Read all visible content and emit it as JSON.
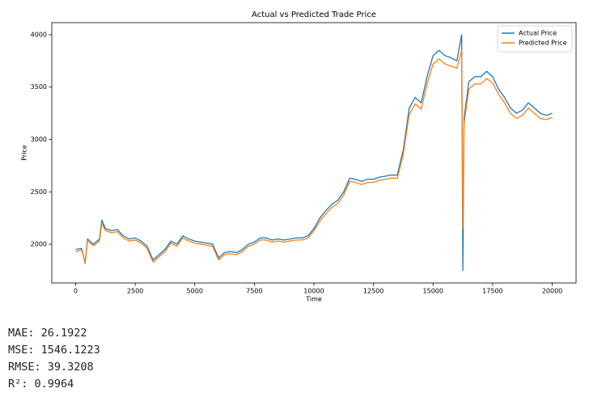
{
  "chart_data": {
    "type": "line",
    "title": "Actual vs Predicted Trade Price",
    "xlabel": "Time",
    "ylabel": "Price",
    "x": [
      0,
      250,
      400,
      500,
      750,
      1000,
      1100,
      1250,
      1500,
      1750,
      2000,
      2250,
      2500,
      2750,
      3000,
      3250,
      3500,
      3750,
      4000,
      4250,
      4500,
      4750,
      5000,
      5250,
      5500,
      5750,
      6000,
      6250,
      6500,
      6750,
      7000,
      7250,
      7500,
      7750,
      8000,
      8250,
      8500,
      8750,
      9000,
      9250,
      9500,
      9750,
      10000,
      10250,
      10500,
      10750,
      11000,
      11250,
      11500,
      11750,
      12000,
      12250,
      12500,
      12750,
      13000,
      13250,
      13500,
      13750,
      14000,
      14250,
      14500,
      14750,
      15000,
      15250,
      15500,
      15750,
      16000,
      16200,
      16250,
      16300,
      16500,
      16750,
      17000,
      17250,
      17500,
      17750,
      18000,
      18250,
      18500,
      18750,
      19000,
      19250,
      19500,
      19750,
      20000
    ],
    "series": [
      {
        "name": "Actual Price",
        "color": "#1f77b4",
        "values": [
          1950,
          1960,
          1820,
          2050,
          2000,
          2050,
          2230,
          2150,
          2130,
          2140,
          2080,
          2050,
          2060,
          2030,
          1980,
          1850,
          1900,
          1950,
          2030,
          2000,
          2080,
          2050,
          2030,
          2020,
          2010,
          2000,
          1870,
          1920,
          1930,
          1920,
          1950,
          2000,
          2020,
          2060,
          2060,
          2040,
          2050,
          2040,
          2050,
          2060,
          2060,
          2080,
          2150,
          2250,
          2320,
          2380,
          2420,
          2500,
          2630,
          2620,
          2600,
          2620,
          2620,
          2640,
          2650,
          2660,
          2660,
          2900,
          3300,
          3400,
          3350,
          3600,
          3800,
          3850,
          3800,
          3780,
          3750,
          4000,
          1750,
          3200,
          3550,
          3600,
          3600,
          3650,
          3600,
          3480,
          3400,
          3300,
          3250,
          3280,
          3350,
          3300,
          3250,
          3230,
          3250
        ]
      },
      {
        "name": "Predicted Price",
        "color": "#ff7f0e",
        "values": [
          1930,
          1945,
          1830,
          2030,
          1985,
          2030,
          2200,
          2130,
          2110,
          2120,
          2060,
          2030,
          2040,
          2010,
          1960,
          1830,
          1880,
          1930,
          2010,
          1980,
          2060,
          2030,
          2010,
          2000,
          1990,
          1980,
          1850,
          1900,
          1910,
          1900,
          1930,
          1980,
          2000,
          2040,
          2040,
          2020,
          2030,
          2020,
          2030,
          2040,
          2040,
          2060,
          2130,
          2220,
          2290,
          2350,
          2390,
          2470,
          2600,
          2590,
          2570,
          2590,
          2590,
          2610,
          2620,
          2630,
          2630,
          2860,
          3240,
          3340,
          3290,
          3530,
          3720,
          3770,
          3720,
          3700,
          3680,
          3850,
          2150,
          3150,
          3480,
          3530,
          3530,
          3580,
          3540,
          3430,
          3350,
          3250,
          3200,
          3230,
          3300,
          3250,
          3200,
          3190,
          3210
        ]
      }
    ],
    "xlim": [
      -1000,
      21000
    ],
    "ylim": [
      1630,
      4115
    ],
    "xticks": [
      0,
      2500,
      5000,
      7500,
      10000,
      12500,
      15000,
      17500,
      20000
    ],
    "yticks": [
      2000,
      2500,
      3000,
      3500,
      4000
    ],
    "legend": "upper right"
  },
  "output": [
    "MAE: 26.1922",
    "MSE: 1546.1223",
    "RMSE: 39.3208",
    "R²: 0.9964"
  ]
}
